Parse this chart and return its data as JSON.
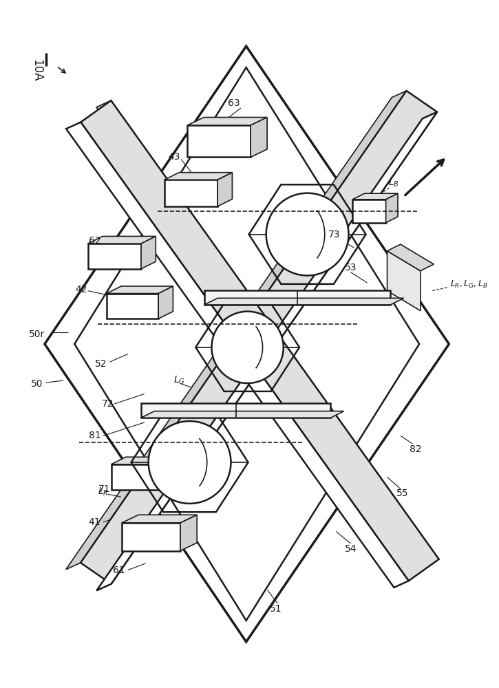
{
  "bg_color": "#ffffff",
  "line_color": "#1a1a1a",
  "lw_thin": 1.2,
  "lw_med": 1.8,
  "lw_thick": 2.5,
  "fig_w": 7.25,
  "fig_h": 10.0,
  "dpi": 100,
  "label_fs": 10,
  "title_fs": 12
}
